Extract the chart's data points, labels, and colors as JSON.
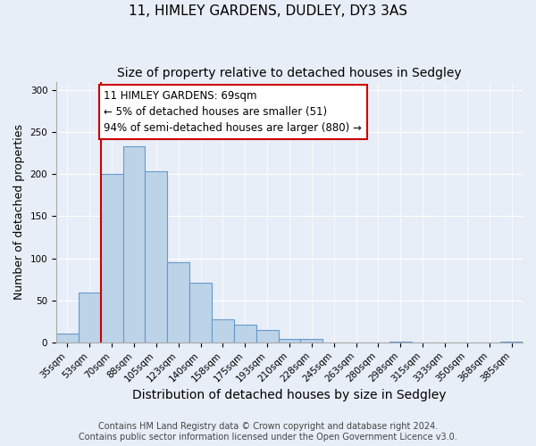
{
  "title": "11, HIMLEY GARDENS, DUDLEY, DY3 3AS",
  "subtitle": "Size of property relative to detached houses in Sedgley",
  "xlabel": "Distribution of detached houses by size in Sedgley",
  "ylabel": "Number of detached properties",
  "bar_labels": [
    "35sqm",
    "53sqm",
    "70sqm",
    "88sqm",
    "105sqm",
    "123sqm",
    "140sqm",
    "158sqm",
    "175sqm",
    "193sqm",
    "210sqm",
    "228sqm",
    "245sqm",
    "263sqm",
    "280sqm",
    "298sqm",
    "315sqm",
    "333sqm",
    "350sqm",
    "368sqm",
    "385sqm"
  ],
  "bar_values": [
    10,
    59,
    200,
    233,
    204,
    95,
    71,
    27,
    21,
    15,
    4,
    4,
    0,
    0,
    0,
    1,
    0,
    0,
    0,
    0,
    1
  ],
  "bar_color": "#bdd4e8",
  "bar_edge_color": "#6699cc",
  "marker_line_color": "#cc0000",
  "annotation_line1": "11 HIMLEY GARDENS: 69sqm",
  "annotation_line2": "← 5% of detached houses are smaller (51)",
  "annotation_line3": "94% of semi-detached houses are larger (880) →",
  "annotation_box_facecolor": "#ffffff",
  "annotation_box_edgecolor": "#cc0000",
  "ylim": [
    0,
    310
  ],
  "yticks": [
    0,
    50,
    100,
    150,
    200,
    250,
    300
  ],
  "footer1": "Contains HM Land Registry data © Crown copyright and database right 2024.",
  "footer2": "Contains public sector information licensed under the Open Government Licence v3.0.",
  "background_color": "#e8eef7",
  "grid_color": "#ffffff",
  "title_fontsize": 11,
  "subtitle_fontsize": 10,
  "xlabel_fontsize": 10,
  "ylabel_fontsize": 9,
  "tick_fontsize": 7.5,
  "footer_fontsize": 7,
  "annotation_fontsize": 8.5
}
